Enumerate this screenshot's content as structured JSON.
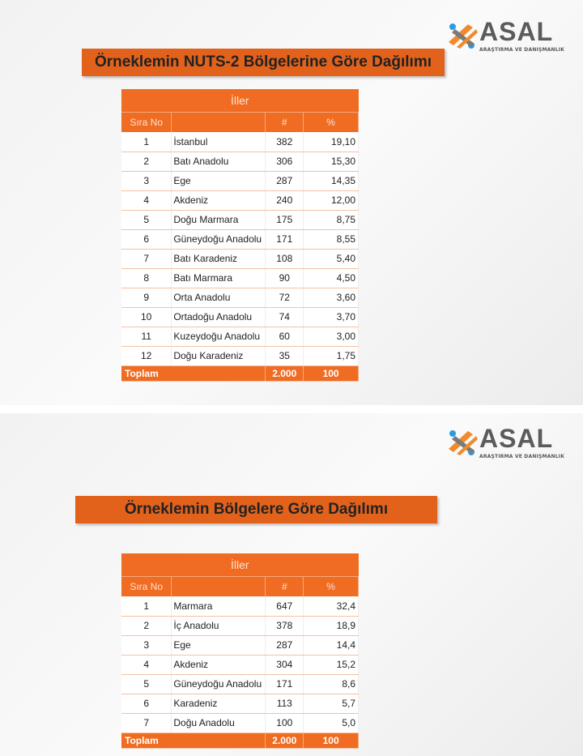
{
  "logo": {
    "word": "ASAL",
    "subtitle": "ARAŞTIRMA VE DANIŞMANLIK",
    "colors": {
      "blue": "#2a9de0",
      "orange": "#f08a2c",
      "gray": "#5b5b5b"
    }
  },
  "accent": "#ef6c22",
  "slide1": {
    "title": "Örneklemin NUTS-2 Bölgelerine Göre Dağılımı",
    "table": {
      "group_header": "İller",
      "headers": [
        "Sıra No",
        "",
        "#",
        "%"
      ],
      "rows": [
        [
          "1",
          "İstanbul",
          "382",
          "19,10"
        ],
        [
          "2",
          "Batı Anadolu",
          "306",
          "15,30"
        ],
        [
          "3",
          "Ege",
          "287",
          "14,35"
        ],
        [
          "4",
          "Akdeniz",
          "240",
          "12,00"
        ],
        [
          "5",
          "Doğu Marmara",
          "175",
          "8,75"
        ],
        [
          "6",
          "Güneydoğu Anadolu",
          "171",
          "8,55"
        ],
        [
          "7",
          "Batı Karadeniz",
          "108",
          "5,40"
        ],
        [
          "8",
          "Batı Marmara",
          "90",
          "4,50"
        ],
        [
          "9",
          "Orta Anadolu",
          "72",
          "3,60"
        ],
        [
          "10",
          "Ortadoğu Anadolu",
          "74",
          "3,70"
        ],
        [
          "11",
          "Kuzeydoğu Anadolu",
          "60",
          "3,00"
        ],
        [
          "12",
          "Doğu Karadeniz",
          "35",
          "1,75"
        ]
      ],
      "total": [
        "Toplam",
        "2.000",
        "100"
      ]
    }
  },
  "slide2": {
    "title": "Örneklemin Bölgelere Göre Dağılımı",
    "table": {
      "group_header": "İller",
      "headers": [
        "Sıra No",
        "",
        "#",
        "%"
      ],
      "rows": [
        [
          "1",
          "Marmara",
          "647",
          "32,4"
        ],
        [
          "2",
          "İç Anadolu",
          "378",
          "18,9"
        ],
        [
          "3",
          "Ege",
          "287",
          "14,4"
        ],
        [
          "4",
          "Akdeniz",
          "304",
          "15,2"
        ],
        [
          "5",
          "Güneydoğu Anadolu",
          "171",
          "8,6"
        ],
        [
          "6",
          "Karadeniz",
          "113",
          "5,7"
        ],
        [
          "7",
          "Doğu Anadolu",
          "100",
          "5,0"
        ]
      ],
      "total": [
        "Toplam",
        "2.000",
        "100"
      ]
    }
  }
}
